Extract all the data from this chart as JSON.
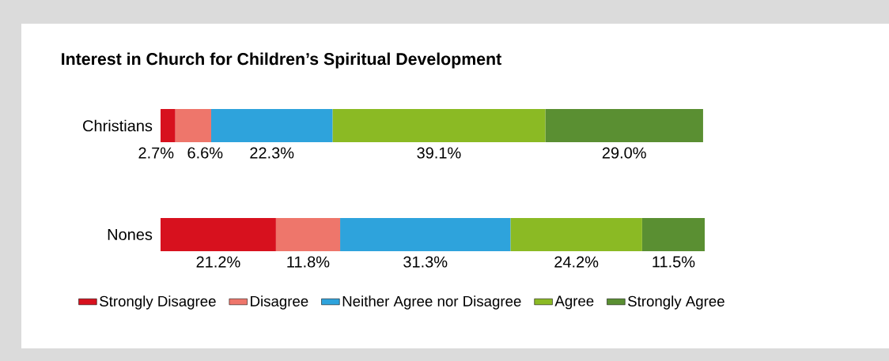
{
  "chart_data": {
    "type": "bar",
    "orientation": "horizontal",
    "stacked": true,
    "legend": "bottom",
    "title": "Interest in Church for Children’s Spiritual Development",
    "categories": [
      "Christians",
      "Nones"
    ],
    "series": [
      {
        "name": "Strongly Disagree",
        "color": "#d7111e",
        "values": [
          2.7,
          21.2
        ],
        "value_labels": [
          "2.7%",
          "21.2%"
        ]
      },
      {
        "name": "Disagree",
        "color": "#ee766b",
        "values": [
          6.6,
          11.8
        ],
        "value_labels": [
          "6.6%",
          "11.8%"
        ]
      },
      {
        "name": "Neither Agree nor Disagree",
        "color": "#2ea3dc",
        "values": [
          22.3,
          31.3
        ],
        "value_labels": [
          "22.3%",
          "31.3%"
        ]
      },
      {
        "name": "Agree",
        "color": "#8bba24",
        "values": [
          39.1,
          24.2
        ],
        "value_labels": [
          "39.1%",
          "24.2%"
        ]
      },
      {
        "name": "Strongly Agree",
        "color": "#5a8f32",
        "values": [
          29.0,
          11.5
        ],
        "value_labels": [
          "29.0%",
          "11.5%"
        ]
      }
    ]
  }
}
